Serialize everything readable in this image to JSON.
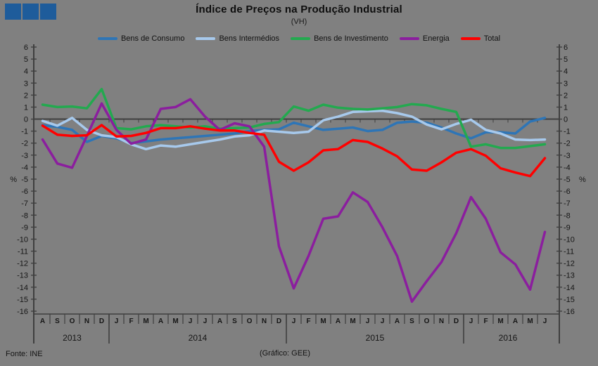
{
  "logo": {
    "square_count": 3,
    "square_color": "#1E5C9B"
  },
  "footer": {
    "source": "Fonte: INE",
    "credit": "(Gráfico: GEE)"
  },
  "chart_data": {
    "type": "line",
    "title": "Índice de Preços na Produção Industrial",
    "subtitle": "(VH)",
    "ylabel": "%",
    "ylim": [
      -16,
      6
    ],
    "ytick_step": 1,
    "grid": "zero-line-only",
    "legend_position": "top",
    "categories": [
      "A",
      "S",
      "O",
      "N",
      "D",
      "J",
      "F",
      "M",
      "A",
      "M",
      "J",
      "J",
      "A",
      "S",
      "O",
      "N",
      "D",
      "J",
      "F",
      "M",
      "A",
      "M",
      "J",
      "J",
      "A",
      "S",
      "O",
      "N",
      "D",
      "J",
      "F",
      "M",
      "A",
      "M",
      "J"
    ],
    "year_groups": [
      {
        "label": "2013",
        "count": 5
      },
      {
        "label": "2014",
        "count": 12
      },
      {
        "label": "2015",
        "count": 12
      },
      {
        "label": "2016",
        "count": 6
      }
    ],
    "series": [
      {
        "name": "Bens de Consumo",
        "color": "#2E75B6",
        "values": [
          -0.5,
          -0.65,
          -0.9,
          -1.9,
          -1.4,
          -1.6,
          -2.0,
          -1.85,
          -1.7,
          -1.6,
          -1.5,
          -1.4,
          -1.3,
          -1.2,
          -1.0,
          -0.9,
          -0.85,
          -0.3,
          -0.6,
          -0.9,
          -0.8,
          -0.7,
          -1.0,
          -0.9,
          -0.3,
          -0.2,
          -0.3,
          -0.7,
          -1.2,
          -1.6,
          -1.1,
          -1.1,
          -1.2,
          -0.2,
          0.1
        ]
      },
      {
        "name": "Bens Intermédios",
        "color": "#A7C9EC",
        "values": [
          -0.15,
          -0.55,
          0.1,
          -0.9,
          -1.35,
          -1.5,
          -2.1,
          -2.5,
          -2.2,
          -2.3,
          -2.1,
          -1.9,
          -1.7,
          -1.45,
          -1.35,
          -0.95,
          -1.05,
          -1.15,
          -1.05,
          -0.1,
          0.2,
          0.6,
          0.65,
          0.7,
          0.5,
          0.2,
          -0.45,
          -0.85,
          -0.4,
          -0.05,
          -0.9,
          -1.2,
          -1.7,
          -1.75,
          -1.7
        ]
      },
      {
        "name": "Bens de Investimento",
        "color": "#23A94F",
        "values": [
          1.2,
          1.0,
          1.05,
          0.9,
          2.5,
          -0.75,
          -0.85,
          -0.6,
          -0.5,
          -0.6,
          -0.7,
          -0.6,
          -0.8,
          -0.75,
          -0.7,
          -0.4,
          -0.25,
          1.05,
          0.7,
          1.2,
          0.95,
          0.85,
          0.8,
          0.9,
          1.0,
          1.25,
          1.15,
          0.85,
          0.6,
          -2.3,
          -2.1,
          -2.4,
          -2.4,
          -2.25,
          -2.1
        ]
      },
      {
        "name": "Energia",
        "color": "#8B1E9E",
        "values": [
          -1.7,
          -3.7,
          -4.05,
          -1.4,
          1.3,
          -0.9,
          -2.05,
          -1.7,
          0.85,
          1.0,
          1.65,
          0.2,
          -0.9,
          -0.35,
          -0.6,
          -2.3,
          -10.6,
          -14.1,
          -11.4,
          -8.3,
          -8.1,
          -6.1,
          -6.9,
          -9.0,
          -11.4,
          -15.2,
          -13.5,
          -11.9,
          -9.5,
          -6.5,
          -8.3,
          -11.1,
          -12.1,
          -14.2,
          -9.4
        ]
      },
      {
        "name": "Total",
        "color": "#FF0000",
        "values": [
          -0.55,
          -1.3,
          -1.4,
          -1.35,
          -0.5,
          -1.45,
          -1.4,
          -1.15,
          -0.75,
          -0.75,
          -0.6,
          -0.8,
          -0.95,
          -0.95,
          -1.15,
          -1.3,
          -3.55,
          -4.3,
          -3.6,
          -2.6,
          -2.5,
          -1.75,
          -1.9,
          -2.45,
          -3.1,
          -4.2,
          -4.3,
          -3.6,
          -2.8,
          -2.5,
          -3.05,
          -4.1,
          -4.45,
          -4.75,
          -3.25
        ]
      }
    ]
  }
}
